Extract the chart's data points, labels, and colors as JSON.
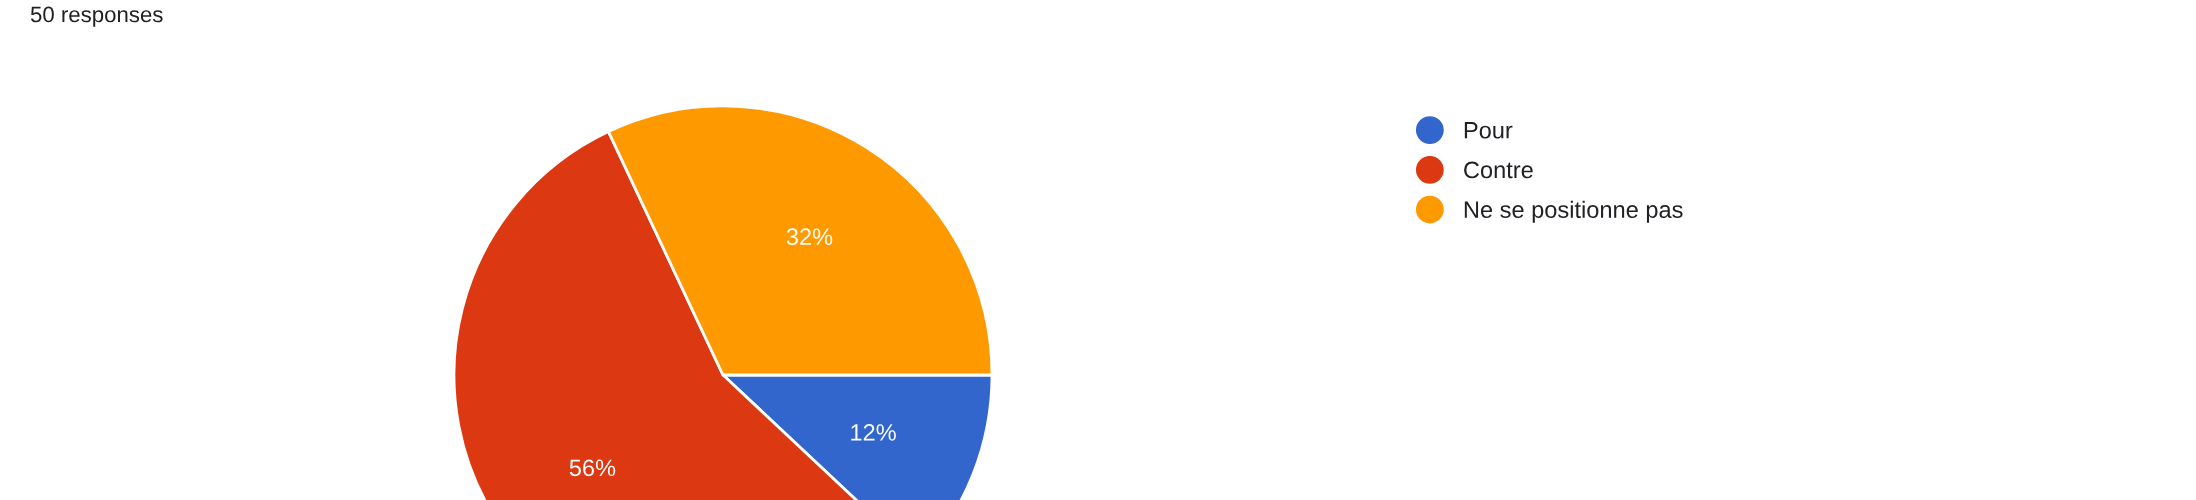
{
  "chart_data": {
    "type": "pie",
    "subtitle": "50 responses",
    "categories": [
      "Pour",
      "Contre",
      "Ne se positionne pas"
    ],
    "values": [
      12,
      56,
      32
    ],
    "colors": [
      "#3366cc",
      "#dc3912",
      "#ff9900"
    ],
    "value_labels": [
      "12%",
      "56%",
      "32%"
    ],
    "legend": "top right"
  }
}
